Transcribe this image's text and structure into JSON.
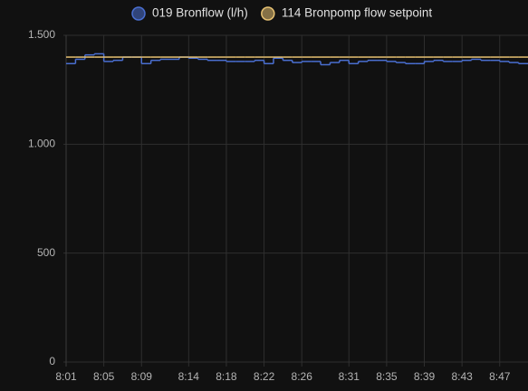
{
  "chart_data": {
    "type": "step-line",
    "x": [
      "8:01",
      "8:02",
      "8:03",
      "8:04",
      "8:05",
      "8:06",
      "8:07",
      "8:08",
      "8:09",
      "8:10",
      "8:11",
      "8:12",
      "8:13",
      "8:14",
      "8:15",
      "8:16",
      "8:17",
      "8:18",
      "8:19",
      "8:20",
      "8:21",
      "8:22",
      "8:23",
      "8:24",
      "8:25",
      "8:26",
      "8:27",
      "8:28",
      "8:29",
      "8:30",
      "8:31",
      "8:32",
      "8:33",
      "8:34",
      "8:35",
      "8:36",
      "8:37",
      "8:38",
      "8:39",
      "8:40",
      "8:41",
      "8:42",
      "8:43",
      "8:44",
      "8:45",
      "8:46",
      "8:47",
      "8:48",
      "8:49",
      "8:50"
    ],
    "series": [
      {
        "name": "019 Bronflow (l/h)",
        "color": "#4a6fd1",
        "values": [
          1370,
          1390,
          1410,
          1415,
          1380,
          1385,
          1400,
          1400,
          1370,
          1385,
          1390,
          1390,
          1400,
          1395,
          1390,
          1385,
          1385,
          1380,
          1380,
          1380,
          1385,
          1370,
          1395,
          1385,
          1375,
          1380,
          1380,
          1365,
          1375,
          1385,
          1370,
          1380,
          1385,
          1385,
          1380,
          1375,
          1370,
          1370,
          1380,
          1385,
          1380,
          1380,
          1385,
          1390,
          1385,
          1385,
          1380,
          1375,
          1370,
          1370
        ]
      },
      {
        "name": "114 Bronpomp flow setpoint",
        "color": "#e6c172",
        "values": [
          1400,
          1400,
          1400,
          1400,
          1400,
          1400,
          1400,
          1400,
          1400,
          1400,
          1400,
          1400,
          1400,
          1400,
          1400,
          1400,
          1400,
          1400,
          1400,
          1400,
          1400,
          1400,
          1400,
          1400,
          1400,
          1400,
          1400,
          1400,
          1400,
          1400,
          1400,
          1400,
          1400,
          1400,
          1400,
          1400,
          1400,
          1400,
          1400,
          1400,
          1400,
          1400,
          1400,
          1400,
          1400,
          1400,
          1400,
          1400,
          1400,
          1400
        ]
      }
    ],
    "xlim": [
      "8:01",
      "8:50"
    ],
    "xticks": [
      "8:01",
      "8:05",
      "8:09",
      "8:14",
      "8:18",
      "8:22",
      "8:26",
      "8:31",
      "8:35",
      "8:39",
      "8:43",
      "8:47"
    ],
    "ylim": [
      0,
      1500
    ],
    "yticks": [
      0,
      500,
      {
        "value": 1000,
        "label": "1.000"
      },
      {
        "value": 1500,
        "label": "1.500"
      }
    ],
    "grid": true,
    "legend": "top"
  }
}
